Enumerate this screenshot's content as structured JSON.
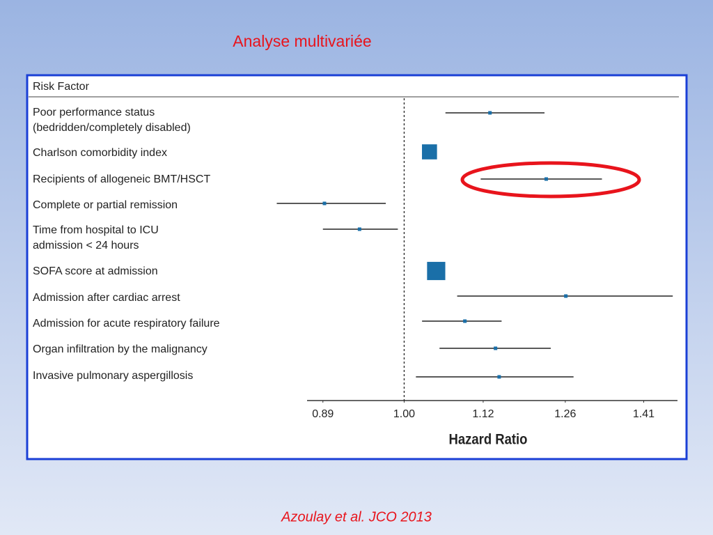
{
  "slide_title": "Analyse multivariée",
  "citation": "Azoulay et al. JCO 2013",
  "chart_data": {
    "type": "forest",
    "header": "Risk Factor",
    "xlabel": "Hazard Ratio",
    "xscale": "log",
    "xlim": [
      0.87,
      1.48
    ],
    "xticks": [
      0.89,
      {
        "value": 1,
        "label": "1.00"
      },
      1.12,
      1.26,
      1.41
    ],
    "reference": 1,
    "color": "#1a6fa8",
    "categories": [
      [
        "Poor performance status",
        "(bedridden/completely disabled)"
      ],
      [
        "Charlson comorbidity index"
      ],
      [
        "Recipients of allogeneic BMT/HSCT"
      ],
      [
        "Complete or partial remission"
      ],
      [
        "Time from hospital to ICU",
        "admission < 24 hours"
      ],
      [
        "SOFA score at admission"
      ],
      [
        "Admission after cardiac arrest"
      ],
      [
        "Admission for acute respiratory failure"
      ],
      [
        "Organ infiltration by the malignancy"
      ],
      [
        "Invasive pulmonary aspergillosis"
      ]
    ],
    "values": [
      1.131,
      1.037,
      1.226,
      0.892,
      0.938,
      1.047,
      1.261,
      1.091,
      1.14,
      1.146
    ],
    "lower": [
      1.061,
      1.031,
      1.116,
      0.833,
      0.89,
      1.042,
      1.079,
      1.026,
      1.052,
      1.017
    ],
    "upper": [
      1.223,
      1.043,
      1.328,
      0.974,
      0.991,
      1.052,
      1.47,
      1.15,
      1.234,
      1.275
    ]
  }
}
